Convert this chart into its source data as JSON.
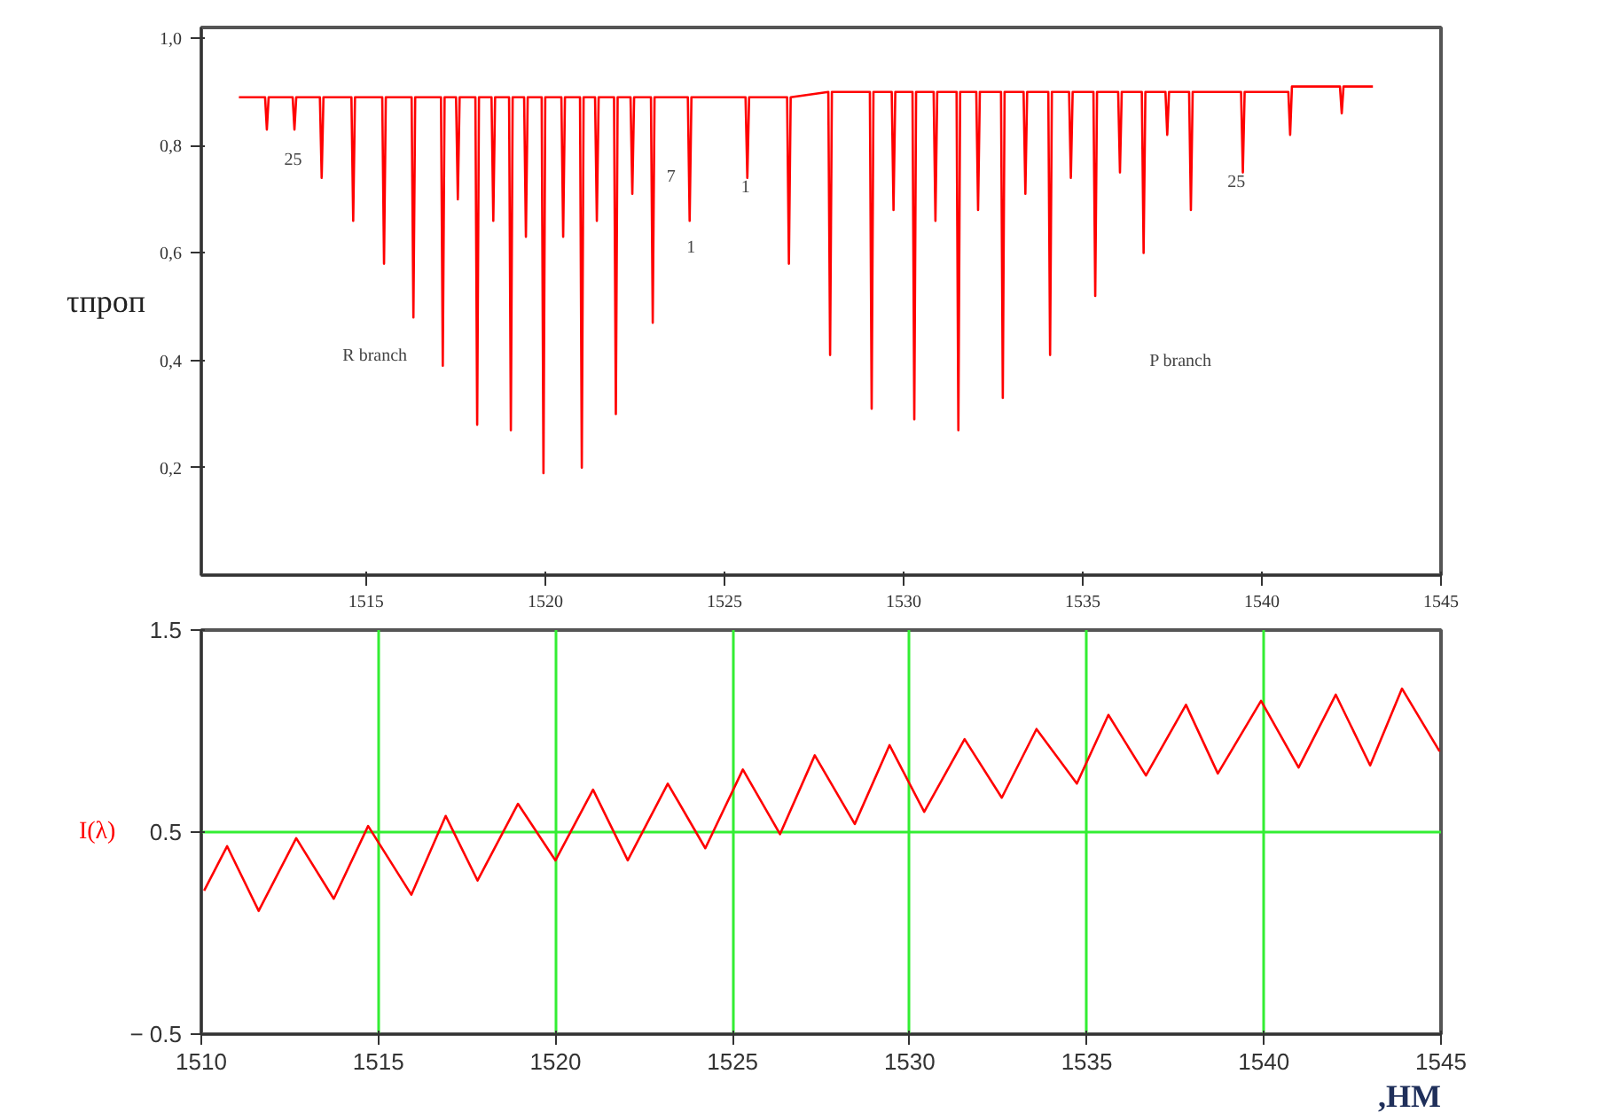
{
  "chart_data": [
    {
      "type": "line",
      "ylabel": "τпроп",
      "xlim": [
        1510.4,
        1545
      ],
      "ylim": [
        0,
        1.02
      ],
      "xticks": [
        1515,
        1520,
        1525,
        1530,
        1535,
        1540,
        1545
      ],
      "yticks": [
        {
          "value": 0.2,
          "label": "0,2"
        },
        {
          "value": 0.4,
          "label": "0,4"
        },
        {
          "value": 0.6,
          "label": "0,6"
        },
        {
          "value": 0.8,
          "label": "0,8"
        },
        {
          "value": 1.0,
          "label": "1,0"
        }
      ],
      "grid": false,
      "x": [
        1511.45,
        1512.18,
        1512.23,
        1512.28,
        1512.95,
        1513.0,
        1513.05,
        1513.71,
        1513.76,
        1513.81,
        1514.59,
        1514.64,
        1514.69,
        1515.45,
        1515.5,
        1515.55,
        1516.27,
        1516.32,
        1516.37,
        1517.09,
        1517.14,
        1517.19,
        1517.51,
        1517.56,
        1517.61,
        1518.05,
        1518.1,
        1518.15,
        1518.5,
        1518.55,
        1518.6,
        1518.99,
        1519.04,
        1519.09,
        1519.41,
        1519.46,
        1519.51,
        1519.9,
        1519.95,
        1520.0,
        1520.45,
        1520.5,
        1520.55,
        1520.97,
        1521.02,
        1521.07,
        1521.39,
        1521.44,
        1521.49,
        1521.92,
        1521.97,
        1522.02,
        1522.38,
        1522.43,
        1522.48,
        1522.95,
        1523.0,
        1523.05,
        1523.98,
        1524.03,
        1524.08,
        1525.59,
        1525.64,
        1525.69,
        1526.75,
        1526.8,
        1526.85,
        1527.9,
        1527.95,
        1528.0,
        1529.06,
        1529.11,
        1529.16,
        1529.67,
        1529.72,
        1529.77,
        1530.25,
        1530.3,
        1530.35,
        1530.84,
        1530.89,
        1530.94,
        1531.48,
        1531.53,
        1531.58,
        1532.03,
        1532.08,
        1532.13,
        1532.72,
        1532.77,
        1532.82,
        1533.35,
        1533.4,
        1533.45,
        1534.04,
        1534.09,
        1534.14,
        1534.62,
        1534.67,
        1534.72,
        1535.3,
        1535.35,
        1535.4,
        1535.99,
        1536.04,
        1536.09,
        1536.65,
        1536.7,
        1536.75,
        1537.31,
        1537.36,
        1537.41,
        1537.97,
        1538.02,
        1538.07,
        1539.42,
        1539.47,
        1539.52,
        1540.74,
        1540.79,
        1540.84,
        1542.18,
        1542.23,
        1542.28,
        1543.1
      ],
      "series": [
        {
          "color": "#ff0000",
          "values": [
            0.89,
            0.89,
            0.83,
            0.89,
            0.89,
            0.83,
            0.89,
            0.89,
            0.74,
            0.89,
            0.89,
            0.66,
            0.89,
            0.89,
            0.58,
            0.89,
            0.89,
            0.48,
            0.89,
            0.89,
            0.39,
            0.89,
            0.89,
            0.7,
            0.89,
            0.89,
            0.28,
            0.89,
            0.89,
            0.66,
            0.89,
            0.89,
            0.27,
            0.89,
            0.89,
            0.63,
            0.89,
            0.89,
            0.19,
            0.89,
            0.89,
            0.63,
            0.89,
            0.89,
            0.2,
            0.89,
            0.89,
            0.66,
            0.89,
            0.89,
            0.3,
            0.89,
            0.89,
            0.71,
            0.89,
            0.89,
            0.47,
            0.89,
            0.89,
            0.66,
            0.89,
            0.89,
            0.74,
            0.89,
            0.89,
            0.58,
            0.89,
            0.9,
            0.41,
            0.9,
            0.9,
            0.31,
            0.9,
            0.9,
            0.68,
            0.9,
            0.9,
            0.29,
            0.9,
            0.9,
            0.66,
            0.9,
            0.9,
            0.27,
            0.9,
            0.9,
            0.68,
            0.9,
            0.9,
            0.33,
            0.9,
            0.9,
            0.71,
            0.9,
            0.9,
            0.41,
            0.9,
            0.9,
            0.74,
            0.9,
            0.9,
            0.52,
            0.9,
            0.9,
            0.75,
            0.9,
            0.9,
            0.6,
            0.9,
            0.9,
            0.82,
            0.9,
            0.9,
            0.68,
            0.9,
            0.9,
            0.75,
            0.9,
            0.9,
            0.82,
            0.91,
            0.91,
            0.86,
            0.91,
            0.91
          ]
        }
      ],
      "annotations": [
        "25",
        "7",
        "1",
        "1",
        "25",
        "R branch",
        "P branch"
      ]
    },
    {
      "type": "line",
      "xlabel": ",НМ",
      "xlim": [
        1510,
        1545
      ],
      "ylim": [
        -0.5,
        1.5
      ],
      "xticks": [
        1510,
        1515,
        1520,
        1525,
        1530,
        1535,
        1540,
        1545
      ],
      "yticks": [
        {
          "value": -0.5,
          "label": "− 0.5"
        },
        0.5,
        1.5
      ],
      "grid": true,
      "legend": "left",
      "line_style": "solid",
      "x": [
        1510.08,
        1510.73,
        1511.62,
        1512.68,
        1513.74,
        1514.71,
        1515.93,
        1516.9,
        1517.8,
        1518.94,
        1520.0,
        1521.06,
        1522.04,
        1523.17,
        1524.23,
        1525.29,
        1526.34,
        1527.32,
        1528.45,
        1529.43,
        1530.41,
        1531.55,
        1532.6,
        1533.58,
        1534.72,
        1535.61,
        1536.67,
        1537.8,
        1538.7,
        1539.92,
        1540.98,
        1542.03,
        1543.0,
        1543.9,
        1544.96
      ],
      "series": [
        {
          "name": "I(λ)",
          "color": "#ff0000",
          "values": [
            0.21,
            0.43,
            0.11,
            0.47,
            0.17,
            0.53,
            0.19,
            0.58,
            0.26,
            0.64,
            0.36,
            0.71,
            0.36,
            0.74,
            0.42,
            0.81,
            0.49,
            0.88,
            0.54,
            0.93,
            0.6,
            0.96,
            0.67,
            1.01,
            0.74,
            1.08,
            0.78,
            1.13,
            0.79,
            1.15,
            0.82,
            1.18,
            0.83,
            1.21,
            0.9
          ]
        }
      ]
    }
  ]
}
